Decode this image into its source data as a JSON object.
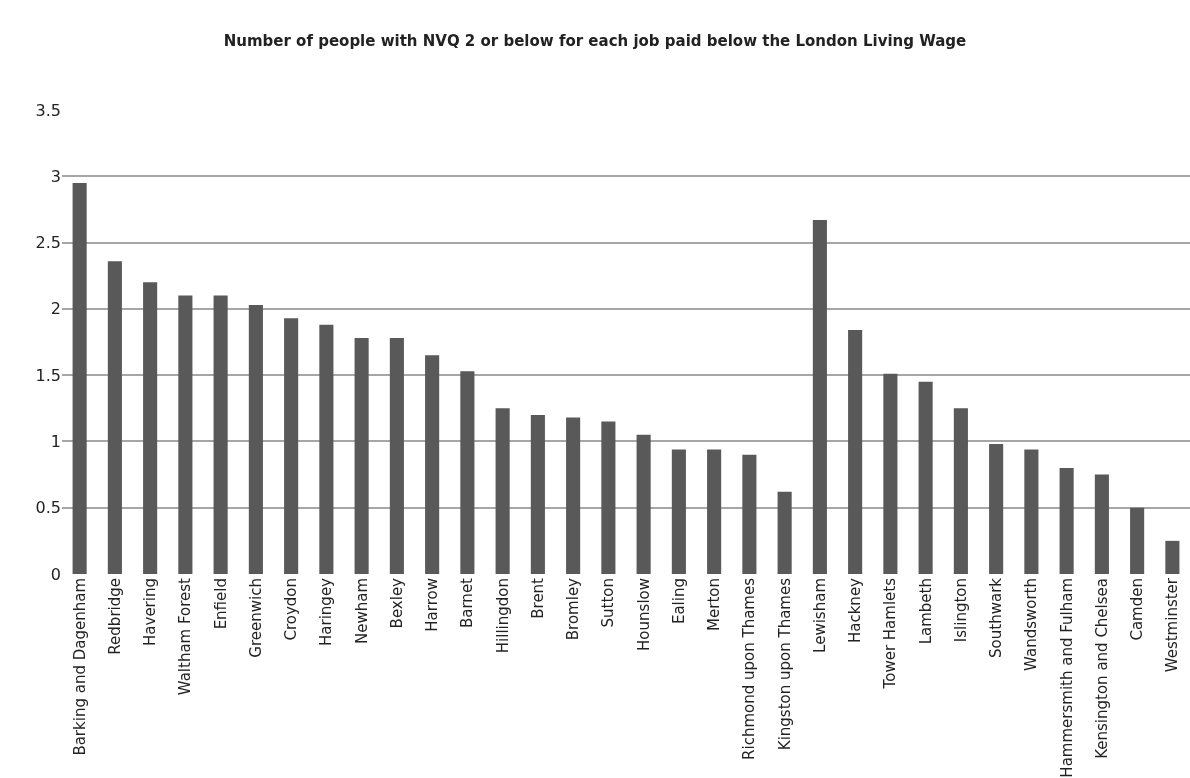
{
  "chart_data": {
    "type": "bar",
    "title": "Number of people with NVQ 2 or below for each job paid below the London Living Wage",
    "categories": [
      "Barking and Dagenham",
      "Redbridge",
      "Havering",
      "Waltham Forest",
      "Enfield",
      "Greenwich",
      "Croydon",
      "Haringey",
      "Newham",
      "Bexley",
      "Harrow",
      "Barnet",
      "Hillingdon",
      "Brent",
      "Bromley",
      "Sutton",
      "Hounslow",
      "Ealing",
      "Merton",
      "Richmond upon Thames",
      "Kingston upon Thames",
      "Lewisham",
      "Hackney",
      "Tower Hamlets",
      "Lambeth",
      "Islington",
      "Southwark",
      "Wandsworth",
      "Hammersmith and Fulham",
      "Kensington and Chelsea",
      "Camden",
      "Westminster"
    ],
    "values": [
      2.95,
      2.36,
      2.2,
      2.1,
      2.1,
      2.03,
      1.93,
      1.88,
      1.78,
      1.78,
      1.65,
      1.53,
      1.25,
      1.2,
      1.18,
      1.15,
      1.05,
      0.94,
      0.94,
      0.9,
      0.62,
      2.67,
      1.84,
      1.51,
      1.45,
      1.25,
      0.98,
      0.94,
      0.8,
      0.75,
      0.5,
      0.25
    ],
    "color": "#595959",
    "ylim": [
      0,
      3.5
    ],
    "yticks": [
      0,
      0.5,
      1,
      1.5,
      2,
      2.5,
      3,
      3.5
    ],
    "grid": "y"
  }
}
